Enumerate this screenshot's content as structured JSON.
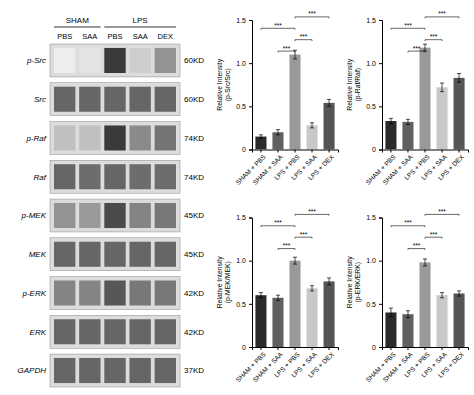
{
  "chart_data": [
    {
      "type": "heatmap",
      "x": [
        "PBS",
        "SAA",
        "PBS",
        "SAA",
        "DEX"
      ],
      "x_groups": [
        "SHAM",
        "SHAM",
        "LPS",
        "LPS",
        "LPS"
      ],
      "y": [
        "p-Src",
        "Src",
        "p-Raf",
        "Raf",
        "p-MEK",
        "MEK",
        "p-ERK",
        "ERK",
        "GAPDH"
      ],
      "y_labels_right": [
        "60KD",
        "60KD",
        "74KD",
        "74KD",
        "45KD",
        "45KD",
        "42KD",
        "42KD",
        "37KD"
      ],
      "cells": [
        [
          0.08,
          0.12,
          0.88,
          0.22,
          0.48
        ],
        [
          0.68,
          0.68,
          0.68,
          0.68,
          0.68
        ],
        [
          0.28,
          0.28,
          0.88,
          0.52,
          0.62
        ],
        [
          0.68,
          0.65,
          0.68,
          0.65,
          0.65
        ],
        [
          0.48,
          0.45,
          0.8,
          0.55,
          0.6
        ],
        [
          0.68,
          0.68,
          0.68,
          0.68,
          0.68
        ],
        [
          0.55,
          0.55,
          0.75,
          0.6,
          0.6
        ],
        [
          0.68,
          0.68,
          0.68,
          0.68,
          0.68
        ],
        [
          0.68,
          0.68,
          0.68,
          0.68,
          0.68
        ]
      ]
    },
    {
      "type": "bar",
      "categories": [
        "SHAM + PBS",
        "SHAM + SAA",
        "LPS + PBS",
        "LPS + SAA",
        "LPS + DEX"
      ],
      "values": [
        0.15,
        0.2,
        1.1,
        0.28,
        0.54
      ],
      "errors": [
        0.02,
        0.03,
        0.05,
        0.03,
        0.04
      ],
      "colors": [
        "#2b2b2b",
        "#606060",
        "#999999",
        "#c8c8c8",
        "#555555"
      ],
      "ylabel": "Relative Intensity\n(p-Src/Src)",
      "ylim": [
        0,
        1.5
      ],
      "yticks": [
        0,
        0.5,
        {
          "value": 1,
          "label": "1.0"
        },
        1.5
      ],
      "significance": [
        {
          "from": "SHAM + SAA",
          "to": "LPS + PBS",
          "label": "***"
        },
        {
          "from": "LPS + PBS",
          "to": "LPS + SAA",
          "label": "***"
        },
        {
          "from": "SHAM + PBS",
          "to": "LPS + PBS",
          "label": "***"
        },
        {
          "from": "LPS + PBS",
          "to": "LPS + DEX",
          "label": "***"
        }
      ]
    },
    {
      "type": "bar",
      "categories": [
        "SHAM + PBS",
        "SHAM + SAA",
        "LPS + PBS",
        "LPS + SAA",
        "LPS + DEX"
      ],
      "values": [
        0.33,
        0.32,
        1.18,
        0.72,
        0.83
      ],
      "errors": [
        0.03,
        0.03,
        0.04,
        0.05,
        0.05
      ],
      "colors": [
        "#2b2b2b",
        "#606060",
        "#999999",
        "#c8c8c8",
        "#555555"
      ],
      "ylabel": "Relative Intensity\n(p-Raf/Raf)",
      "ylim": [
        0,
        1.5
      ],
      "yticks": [
        0,
        0.5,
        {
          "value": 1,
          "label": "1.0"
        },
        1.5
      ],
      "significance": [
        {
          "from": "SHAM + SAA",
          "to": "LPS + PBS",
          "label": "***"
        },
        {
          "from": "LPS + PBS",
          "to": "LPS + SAA",
          "label": "***"
        },
        {
          "from": "SHAM + PBS",
          "to": "LPS + PBS",
          "label": "***"
        },
        {
          "from": "LPS + PBS",
          "to": "LPS + DEX",
          "label": "***"
        }
      ]
    },
    {
      "type": "bar",
      "categories": [
        "SHAM + PBS",
        "SHAM + SAA",
        "LPS + PBS",
        "LPS + SAA",
        "LPS + DEX"
      ],
      "values": [
        0.6,
        0.57,
        1.0,
        0.68,
        0.76
      ],
      "errors": [
        0.03,
        0.03,
        0.04,
        0.03,
        0.04
      ],
      "colors": [
        "#2b2b2b",
        "#606060",
        "#999999",
        "#c8c8c8",
        "#555555"
      ],
      "ylabel": "Relative Intensity\n(p-MEK/MEK)",
      "ylim": [
        0,
        1.5
      ],
      "yticks": [
        0,
        0.5,
        {
          "value": 1,
          "label": "1.0"
        },
        1.5
      ],
      "significance": [
        {
          "from": "SHAM + SAA",
          "to": "LPS + PBS",
          "label": "***"
        },
        {
          "from": "LPS + PBS",
          "to": "LPS + SAA",
          "label": "***"
        },
        {
          "from": "SHAM + PBS",
          "to": "LPS + PBS",
          "label": "***"
        },
        {
          "from": "LPS + PBS",
          "to": "LPS + DEX",
          "label": "***"
        }
      ]
    },
    {
      "type": "bar",
      "categories": [
        "SHAM + PBS",
        "SHAM + SAA",
        "LPS + PBS",
        "LPS + SAA",
        "LPS + DEX"
      ],
      "values": [
        0.4,
        0.38,
        0.98,
        0.6,
        0.62
      ],
      "errors": [
        0.05,
        0.04,
        0.04,
        0.03,
        0.03
      ],
      "colors": [
        "#2b2b2b",
        "#606060",
        "#999999",
        "#c8c8c8",
        "#555555"
      ],
      "ylabel": "Relative Intensity\n(p-ERK/ERK)",
      "ylim": [
        0,
        1.5
      ],
      "yticks": [
        0,
        0.5,
        {
          "value": 1,
          "label": "1.0"
        },
        1.5
      ],
      "significance": [
        {
          "from": "SHAM + SAA",
          "to": "LPS + PBS",
          "label": "***"
        },
        {
          "from": "LPS + PBS",
          "to": "LPS + SAA",
          "label": "***"
        },
        {
          "from": "SHAM + PBS",
          "to": "LPS + PBS",
          "label": "***"
        },
        {
          "from": "LPS + PBS",
          "to": "LPS + DEX",
          "label": "***"
        }
      ]
    }
  ]
}
